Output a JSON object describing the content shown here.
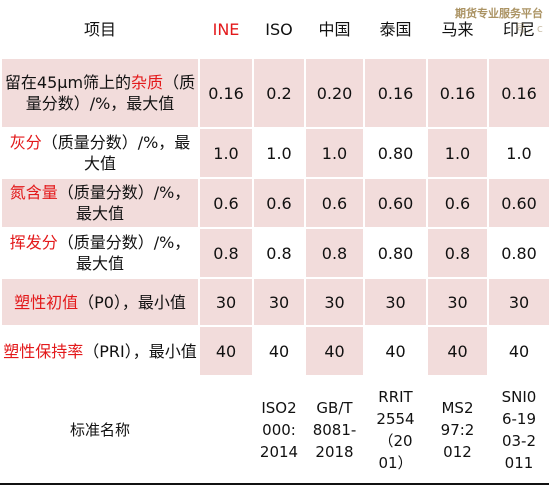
{
  "table": {
    "headers": [
      "项目",
      "INE",
      "ISO",
      "中国",
      "泰国",
      "马来",
      "印尼"
    ],
    "rows": [
      {
        "item_pre": "留在45μm筛上的",
        "item_red": "杂质",
        "item_post": "（质量分数）/%，最大值",
        "values": [
          "0.16",
          "0.2",
          "0.20",
          "0.16",
          "0.16",
          "0.16"
        ]
      },
      {
        "item_pre": "",
        "item_red": "灰分",
        "item_post": "（质量分数）/%，最大值",
        "values": [
          "1.0",
          "1.0",
          "1.0",
          "0.80",
          "1.0",
          "1.0"
        ]
      },
      {
        "item_pre": "",
        "item_red": "氮含量",
        "item_post": "（质量分数）/%，最大值",
        "values": [
          "0.6",
          "0.6",
          "0.6",
          "0.60",
          "0.6",
          "0.60"
        ]
      },
      {
        "item_pre": "",
        "item_red": "挥发分",
        "item_post": "（质量分数）/%，最大值",
        "values": [
          "0.8",
          "0.8",
          "0.8",
          "0.80",
          "0.8",
          "0.80"
        ]
      },
      {
        "item_pre": "",
        "item_red": "塑性初值",
        "item_post": "（P0），最小值",
        "values": [
          "30",
          "30",
          "30",
          "30",
          "30",
          "30"
        ]
      },
      {
        "item_pre": "",
        "item_red": "塑性保持率",
        "item_post": "（PRI），最小值",
        "values": [
          "40",
          "40",
          "40",
          "40",
          "40",
          "40"
        ]
      }
    ],
    "standard": {
      "label": "标准名称",
      "values": [
        "",
        "ISO2000:2014",
        "GB/T8081-2018",
        "RRIT2554（2001）",
        "MS297:2012",
        "SNI06-1903-2011"
      ]
    }
  },
  "watermark": {
    "line1": "期货专业服务平台",
    "line2": "号：c"
  }
}
